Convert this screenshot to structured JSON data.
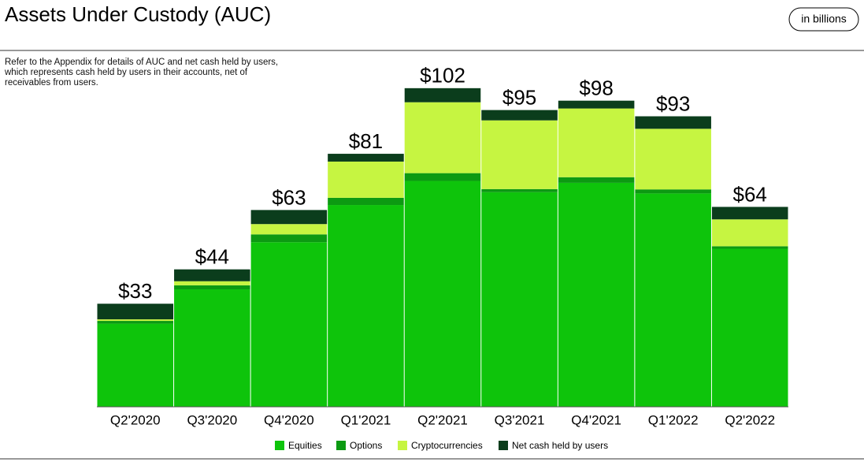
{
  "chart_data": {
    "type": "stacked_bar",
    "title": "Assets Under Custody (AUC)",
    "unit_note": "in billions",
    "note": "Refer to the Appendix for details of AUC and net cash held by users, which represents cash held by users in their accounts, net of receivables from users.",
    "categories": [
      "Q2'2020",
      "Q3'2020",
      "Q4'2020",
      "Q1'2021",
      "Q2'2021",
      "Q3'2021",
      "Q4'2021",
      "Q1'2022",
      "Q2'2022"
    ],
    "series": [
      {
        "name": "Equities",
        "color": "#0ec40b",
        "values": [
          26.6,
          37.6,
          52.7,
          64.6,
          72.3,
          68.7,
          71.7,
          68.3,
          50.6
        ]
      },
      {
        "name": "Options",
        "color": "#0c9a12",
        "values": [
          0.9,
          1.3,
          2.5,
          2.3,
          2.5,
          1.0,
          1.8,
          1.3,
          0.8
        ]
      },
      {
        "name": "Cryptocurrencies",
        "color": "#c6f541",
        "values": [
          0.5,
          1.3,
          3.3,
          11.6,
          22.7,
          22.0,
          22.0,
          19.4,
          8.6
        ]
      },
      {
        "name": "Net cash held by users",
        "color": "#0b3d1c",
        "values": [
          5.0,
          3.8,
          4.5,
          2.5,
          4.5,
          3.3,
          2.5,
          4.0,
          4.0
        ]
      }
    ],
    "totals": [
      33,
      44,
      63,
      81,
      102,
      95,
      98,
      93,
      64
    ],
    "total_labels": [
      "$33",
      "$44",
      "$63",
      "$81",
      "$102",
      "$95",
      "$98",
      "$93",
      "$64"
    ],
    "ylim": [
      0,
      106
    ]
  }
}
